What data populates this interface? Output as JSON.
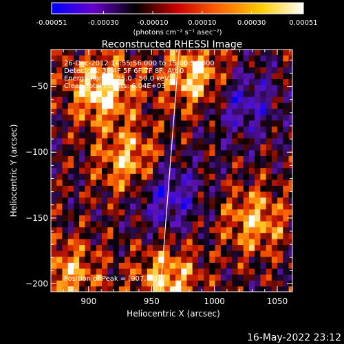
{
  "colorbar": {
    "tick_labels": [
      "-0.00051",
      "-0.00030",
      "-0.00010",
      "0.00010",
      "0.00030",
      "0.00051"
    ],
    "tick_values": [
      -0.00051,
      -0.0003,
      -0.0001,
      0.0001,
      0.0003,
      0.00051
    ],
    "range": [
      -0.00051,
      0.00051
    ],
    "units_label": "(photons cm⁻² s⁻¹ asec⁻²)",
    "colors": [
      "#0000ff",
      "#6600cc",
      "#000000",
      "#cc0000",
      "#ff6600",
      "#ffcc00",
      "#ffffff"
    ]
  },
  "chart_data": {
    "type": "heatmap",
    "title": "Reconstructed RHESSI Image",
    "xlabel": "Heliocentric X (arcsec)",
    "ylabel": "Heliocentric Y (arcsec)",
    "xlim": [
      870,
      1062
    ],
    "ylim": [
      -206,
      -22
    ],
    "x_ticks": [
      900,
      950,
      1000,
      1050
    ],
    "y_ticks": [
      -50,
      -100,
      -150,
      -200
    ],
    "x_tick_labels": [
      "900",
      "950",
      "1000",
      "1050"
    ],
    "y_tick_labels": [
      "−50",
      "−100",
      "−150",
      "−200"
    ],
    "annotations": [
      "26-Dec-2012 14:55:56.000 to 15:00:56.000",
      "Detectors: 3F 4F 5F 6F 7F 8F, Att 0",
      "Energy Range: 25.0 - 50.0 keV",
      "Clean    Total counts: 6.04E+03"
    ],
    "peak_label": "Position of Peak = [907,-50]",
    "limb_line": [
      [
        972,
        -22
      ],
      [
        957,
        -206
      ]
    ],
    "bright_regions": [
      {
        "x": 908,
        "y": -50,
        "intensity": 0.00051
      },
      {
        "x": 982,
        "y": -40,
        "intensity": 0.00045
      },
      {
        "x": 930,
        "y": -105,
        "intensity": 0.0004
      },
      {
        "x": 1030,
        "y": -150,
        "intensity": 0.00038
      },
      {
        "x": 960,
        "y": -195,
        "intensity": 0.00042
      },
      {
        "x": 882,
        "y": -190,
        "intensity": 0.00035
      }
    ],
    "dark_regions": [
      {
        "x": 960,
        "y": -130,
        "intensity": -0.00035
      },
      {
        "x": 1020,
        "y": -60,
        "intensity": -0.0003
      }
    ]
  },
  "footer": {
    "timestamp": "16-May-2022 23:12"
  }
}
